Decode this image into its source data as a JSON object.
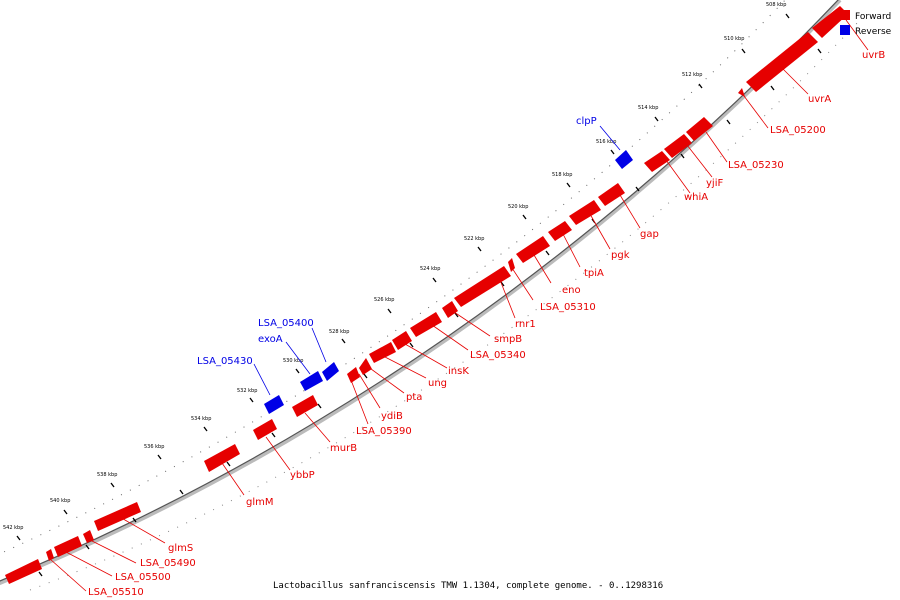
{
  "legend": {
    "forward": "Forward",
    "reverse": "Reverse",
    "forward_color": "#e60000",
    "reverse_color": "#0000e6"
  },
  "footer": "Lactobacillus sanfranciscensis TMW 1.1304, complete genome. - 0..1298316",
  "ticks": [
    "508 kbp",
    "510 kbp",
    "512 kbp",
    "514 kbp",
    "516 kbp",
    "518 kbp",
    "520 kbp",
    "522 kbp",
    "524 kbp",
    "526 kbp",
    "528 kbp",
    "530 kbp",
    "532 kbp",
    "534 kbp",
    "536 kbp",
    "538 kbp",
    "540 kbp",
    "542 kbp"
  ],
  "forward_labels": [
    "uvrB",
    "uvrA",
    "LSA_05200",
    "LSA_05230",
    "yjiF",
    "whiA",
    "gap",
    "pgk",
    "tpiA",
    "eno",
    "LSA_05310",
    "rnr1",
    "smpB",
    "LSA_05340",
    "insK",
    "ung",
    "pta",
    "ydiB",
    "LSA_05390",
    "murB",
    "ybbP",
    "glmM",
    "glmS",
    "LSA_05490",
    "LSA_05500",
    "LSA_05510"
  ],
  "reverse_labels": [
    "clpP",
    "LSA_05400",
    "exoA",
    "LSA_05430"
  ]
}
